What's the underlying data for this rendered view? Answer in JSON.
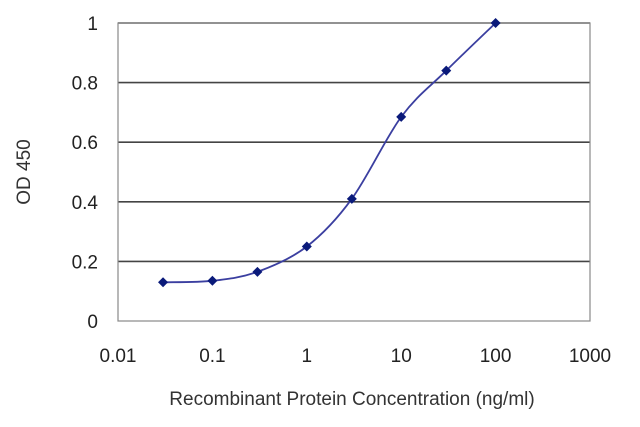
{
  "chart_data": {
    "type": "scatter",
    "title": "",
    "xlabel": "Recombinant Protein Concentration (ng/ml)",
    "ylabel": "OD 450",
    "x_scale": "log",
    "xlim": [
      0.01,
      1000
    ],
    "ylim": [
      0,
      1
    ],
    "x_ticks": [
      "0.01",
      "0.1",
      "1",
      "10",
      "100",
      "1000"
    ],
    "y_ticks": [
      "0",
      "0.2",
      "0.4",
      "0.6",
      "0.8",
      "1"
    ],
    "grid": "horizontal",
    "legend": "none",
    "series": [
      {
        "x": [
          0.03,
          0.1,
          0.3,
          1,
          3,
          10,
          30,
          100
        ],
        "y": [
          0.13,
          0.135,
          0.165,
          0.25,
          0.41,
          0.685,
          0.84,
          1.0
        ]
      }
    ],
    "colors": {
      "line": "#3b3fa0",
      "marker": "#0a1a7a",
      "grid": "#444444",
      "plot_border": "#888888",
      "background": "#ffffff"
    }
  }
}
